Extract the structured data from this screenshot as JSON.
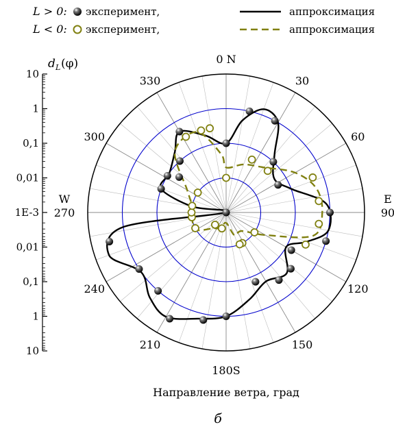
{
  "legend": {
    "pos_label": "L > 0:",
    "neg_label": "L < 0:",
    "experiment": "эксперимент,",
    "approximation": "аппроксимация"
  },
  "axis": {
    "ylabel": "d",
    "ylabel_sub": "L",
    "ylabel_arg": "(φ)",
    "xlabel": "Направление ветра, град",
    "ticks": [
      "10",
      "1",
      "0,1",
      "0,01",
      "1E-3",
      "0,01",
      "0,1",
      "1",
      "10"
    ]
  },
  "compass": {
    "N": "0 N",
    "S": "180S",
    "E": "E",
    "W": "W",
    "angle_labels": [
      "30",
      "60",
      "90",
      "120",
      "150",
      "180S",
      "210",
      "240",
      "270",
      "300",
      "330",
      "0 N"
    ]
  },
  "caption": "б",
  "colors": {
    "positive": "#000000",
    "negative": "#808010",
    "circles": "#0000cc",
    "grid": "#999999"
  },
  "chart_data": {
    "type": "polar-scatter",
    "radial_scale": "log of |d_L|, center = 1E-3, outer circle = 10",
    "radial_ticks": [
      0.001,
      0.01,
      0.1,
      1,
      10
    ],
    "angle_unit": "degrees, 0 = N, clockwise",
    "series": [
      {
        "name": "L > 0: эксперимент",
        "marker": "filled sphere",
        "points": [
          {
            "angle": 0,
            "value": 0.1
          },
          {
            "angle": 13,
            "value": 1
          },
          {
            "angle": 28,
            "value": 1
          },
          {
            "angle": 43,
            "value": 0.1
          },
          {
            "angle": 62,
            "value": 0.05
          },
          {
            "angle": 90,
            "value": 1
          },
          {
            "angle": 106,
            "value": 1
          },
          {
            "angle": 120,
            "value": 0.15
          },
          {
            "angle": 131,
            "value": 0.3
          },
          {
            "angle": 142,
            "value": 0.3
          },
          {
            "angle": 157,
            "value": 0.15
          },
          {
            "angle": 180,
            "value": 1
          },
          {
            "angle": 192,
            "value": 1.5
          },
          {
            "angle": 208,
            "value": 3
          },
          {
            "angle": 221,
            "value": 1
          },
          {
            "angle": 237,
            "value": 1
          },
          {
            "angle": 256,
            "value": 3
          },
          {
            "angle": 270,
            "value": 0.001
          },
          {
            "angle": 290,
            "value": 0.1
          },
          {
            "angle": 302,
            "value": 0.1
          },
          {
            "angle": 307,
            "value": 0.05
          },
          {
            "angle": 318,
            "value": 0.1
          },
          {
            "angle": 330,
            "value": 0.5
          }
        ]
      },
      {
        "name": "L < 0: эксперимент",
        "marker": "open circle",
        "points": [
          {
            "angle": 0,
            "value": 0.01
          },
          {
            "angle": 26,
            "value": 0.05
          },
          {
            "angle": 45,
            "value": 0.05
          },
          {
            "angle": 68,
            "value": 0.5
          },
          {
            "angle": 83,
            "value": 0.5
          },
          {
            "angle": 97,
            "value": 0.5
          },
          {
            "angle": 112,
            "value": 0.3
          },
          {
            "angle": 125,
            "value": 0.01
          },
          {
            "angle": 152,
            "value": 0.01
          },
          {
            "angle": 157,
            "value": 0.01
          },
          {
            "angle": 195,
            "value": 0.003
          },
          {
            "angle": 222,
            "value": 0.003
          },
          {
            "angle": 243,
            "value": 0.01
          },
          {
            "angle": 262,
            "value": 0.01
          },
          {
            "angle": 270,
            "value": 0.01
          },
          {
            "angle": 281,
            "value": 0.01
          },
          {
            "angle": 305,
            "value": 0.01
          },
          {
            "angle": 332,
            "value": 0.3
          },
          {
            "angle": 343,
            "value": 0.3
          },
          {
            "angle": 349,
            "value": 0.3
          }
        ]
      },
      {
        "name": "L > 0: аппроксимация",
        "style": "solid black line",
        "points": [
          {
            "angle": 0,
            "value": 0.1
          },
          {
            "angle": 10,
            "value": 0.5
          },
          {
            "angle": 20,
            "value": 1.5
          },
          {
            "angle": 30,
            "value": 1
          },
          {
            "angle": 40,
            "value": 0.15
          },
          {
            "angle": 55,
            "value": 0.05
          },
          {
            "angle": 70,
            "value": 0.1
          },
          {
            "angle": 85,
            "value": 0.8
          },
          {
            "angle": 100,
            "value": 1
          },
          {
            "angle": 110,
            "value": 0.3
          },
          {
            "angle": 120,
            "value": 0.1
          },
          {
            "angle": 135,
            "value": 0.3
          },
          {
            "angle": 150,
            "value": 0.2
          },
          {
            "angle": 165,
            "value": 0.4
          },
          {
            "angle": 180,
            "value": 1
          },
          {
            "angle": 195,
            "value": 1.5
          },
          {
            "angle": 210,
            "value": 3
          },
          {
            "angle": 222,
            "value": 2
          },
          {
            "angle": 235,
            "value": 1
          },
          {
            "angle": 250,
            "value": 4
          },
          {
            "angle": 262,
            "value": 1
          },
          {
            "angle": 270,
            "value": 0.001
          },
          {
            "angle": 280,
            "value": 0.01
          },
          {
            "angle": 290,
            "value": 0.1
          },
          {
            "angle": 305,
            "value": 0.1
          },
          {
            "angle": 320,
            "value": 0.2
          },
          {
            "angle": 330,
            "value": 0.5
          },
          {
            "angle": 345,
            "value": 0.2
          }
        ]
      },
      {
        "name": "L < 0: аппроксимация",
        "style": "dashed olive line",
        "points": [
          {
            "angle": 0,
            "value": 0.02
          },
          {
            "angle": 20,
            "value": 0.03
          },
          {
            "angle": 40,
            "value": 0.05
          },
          {
            "angle": 60,
            "value": 0.2
          },
          {
            "angle": 75,
            "value": 0.5
          },
          {
            "angle": 90,
            "value": 0.6
          },
          {
            "angle": 105,
            "value": 0.4
          },
          {
            "angle": 120,
            "value": 0.02
          },
          {
            "angle": 140,
            "value": 0.005
          },
          {
            "angle": 160,
            "value": 0.005
          },
          {
            "angle": 180,
            "value": 0.002
          },
          {
            "angle": 200,
            "value": 0.003
          },
          {
            "angle": 220,
            "value": 0.004
          },
          {
            "angle": 240,
            "value": 0.01
          },
          {
            "angle": 260,
            "value": 0.01
          },
          {
            "angle": 280,
            "value": 0.01
          },
          {
            "angle": 300,
            "value": 0.02
          },
          {
            "angle": 320,
            "value": 0.2
          },
          {
            "angle": 340,
            "value": 0.3
          },
          {
            "angle": 355,
            "value": 0.05
          }
        ]
      }
    ]
  }
}
